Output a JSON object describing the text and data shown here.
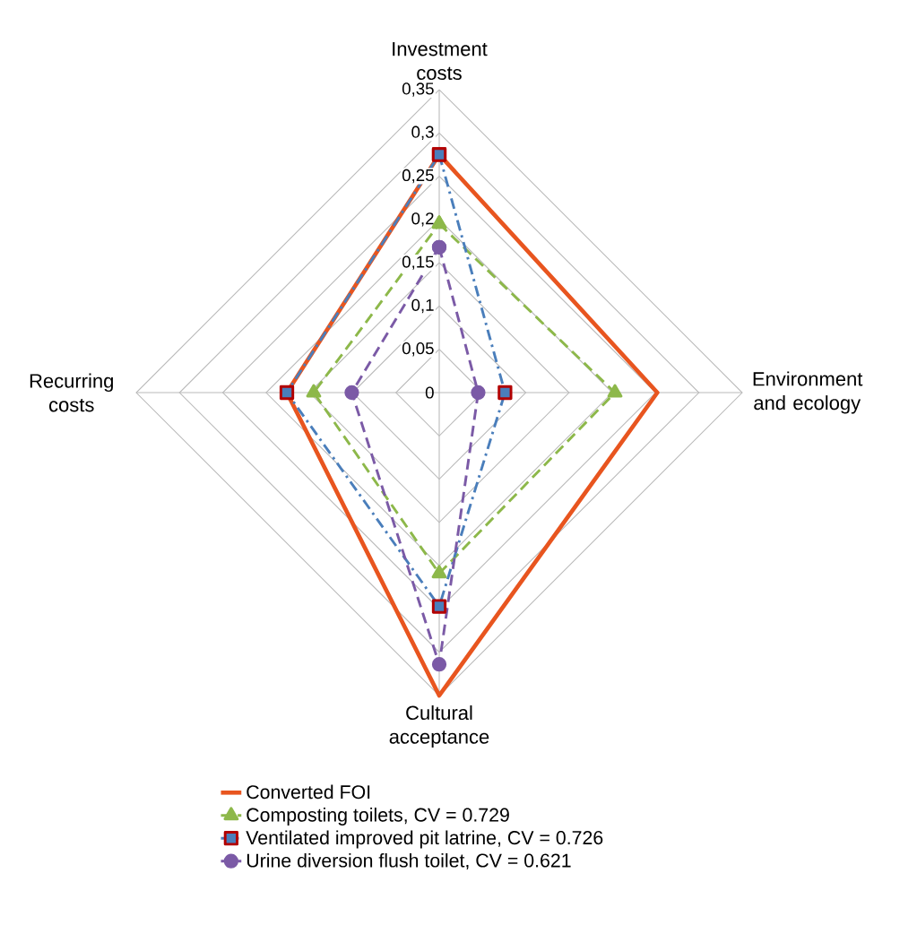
{
  "chart_data": {
    "type": "radar",
    "categories": [
      "Investment costs",
      "Environment and ecology",
      "Cultural acceptance",
      "Recurring costs"
    ],
    "series": [
      {
        "name": "Converted FOI",
        "color": "#e8551f",
        "values": [
          0.275,
          0.252,
          0.35,
          0.176
        ],
        "line_style": "solid",
        "marker": "none"
      },
      {
        "name": "Composting toilets, CV = 0.729",
        "color": "#8db84a",
        "values": [
          0.195,
          0.203,
          0.209,
          0.145
        ],
        "line_style": "dashed",
        "marker": "triangle"
      },
      {
        "name": "Ventilated improved pit latrine, CV = 0.726",
        "color": "#4a7ebb",
        "values": [
          0.275,
          0.076,
          0.247,
          0.176
        ],
        "line_style": "dashdot",
        "marker": "square"
      },
      {
        "name": "Urine diversion flush toilet, CV = 0.621",
        "color": "#7b5aa6",
        "values": [
          0.168,
          0.045,
          0.314,
          0.101
        ],
        "line_style": "dashed",
        "marker": "circle"
      }
    ],
    "ylim": [
      0,
      0.35
    ],
    "yticks": [
      {
        "value": 0,
        "label": "0"
      },
      {
        "value": 0.05,
        "label": "0,05"
      },
      {
        "value": 0.1,
        "label": "0,1"
      },
      {
        "value": 0.15,
        "label": "0,15"
      },
      {
        "value": 0.2,
        "label": "0,2"
      },
      {
        "value": 0.25,
        "label": "0,25"
      },
      {
        "value": 0.3,
        "label": "0,3"
      },
      {
        "value": 0.35,
        "label": "0,35"
      }
    ],
    "grid": true,
    "legend": "bottom"
  }
}
